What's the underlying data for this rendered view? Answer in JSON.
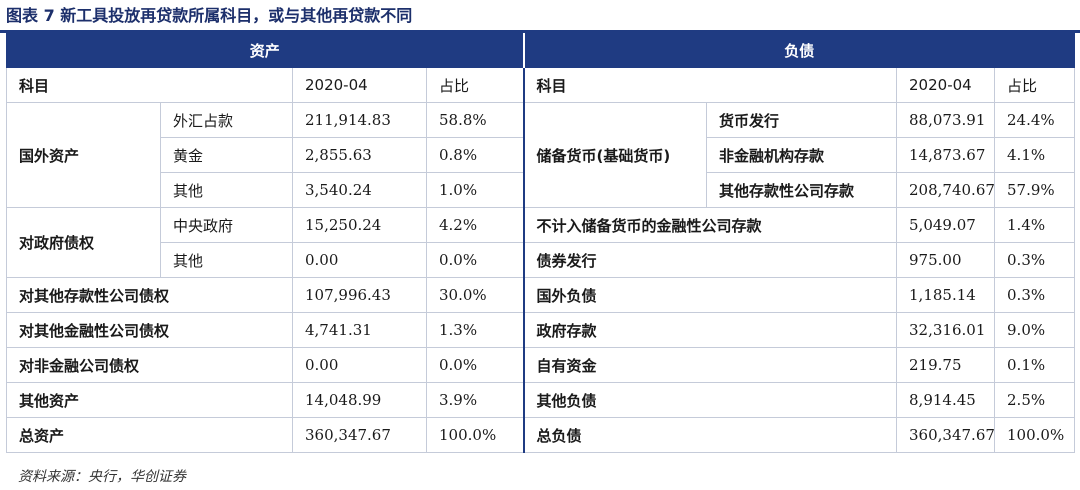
{
  "title": "图表 7  新工具投放再贷款所属科目，或与其他再贷款不同",
  "header": {
    "assets": "资产",
    "liabilities": "负债"
  },
  "columns": {
    "left_item": "科目",
    "left_date": "2020-04",
    "left_ratio": "占比",
    "right_item": "科目",
    "right_date": "2020-04",
    "right_ratio": "占比"
  },
  "assets": {
    "foreign": {
      "label": "国外资产",
      "rows": [
        {
          "sub": "外汇占款",
          "value": "211,914.83",
          "ratio": "58.8%"
        },
        {
          "sub": "黄金",
          "value": "2,855.63",
          "ratio": "0.8%"
        },
        {
          "sub": "其他",
          "value": "3,540.24",
          "ratio": "1.0%"
        }
      ]
    },
    "gov": {
      "label": "对政府债权",
      "rows": [
        {
          "sub": "中央政府",
          "value": "15,250.24",
          "ratio": "4.2%"
        },
        {
          "sub": "其他",
          "value": "0.00",
          "ratio": "0.0%"
        }
      ]
    },
    "single": [
      {
        "label": "对其他存款性公司债权",
        "value": "107,996.43",
        "ratio": "30.0%"
      },
      {
        "label": "对其他金融性公司债权",
        "value": "4,741.31",
        "ratio": "1.3%"
      },
      {
        "label": "对非金融公司债权",
        "value": "0.00",
        "ratio": "0.0%"
      },
      {
        "label": "其他资产",
        "value": "14,048.99",
        "ratio": "3.9%"
      },
      {
        "label": "总资产",
        "value": "360,347.67",
        "ratio": "100.0%"
      }
    ]
  },
  "liabilities": {
    "reserve": {
      "label": "储备货币(基础货币)",
      "rows": [
        {
          "sub": "货币发行",
          "value": "88,073.91",
          "ratio": "24.4%"
        },
        {
          "sub": "非金融机构存款",
          "value": "14,873.67",
          "ratio": "4.1%"
        },
        {
          "sub": "其他存款性公司存款",
          "value": "208,740.67",
          "ratio": "57.9%"
        }
      ]
    },
    "single": [
      {
        "label": "不计入储备货币的金融性公司存款",
        "value": "5,049.07",
        "ratio": "1.4%"
      },
      {
        "label": "债券发行",
        "value": "975.00",
        "ratio": "0.3%"
      },
      {
        "label": "国外负债",
        "value": "1,185.14",
        "ratio": "0.3%"
      },
      {
        "label": "政府存款",
        "value": "32,316.01",
        "ratio": "9.0%"
      },
      {
        "label": "自有资金",
        "value": "219.75",
        "ratio": "0.1%"
      },
      {
        "label": "其他负债",
        "value": "8,914.45",
        "ratio": "2.5%"
      },
      {
        "label": "总负债",
        "value": "360,347.67",
        "ratio": "100.0%"
      }
    ]
  },
  "source": "资料来源：央行，华创证券"
}
